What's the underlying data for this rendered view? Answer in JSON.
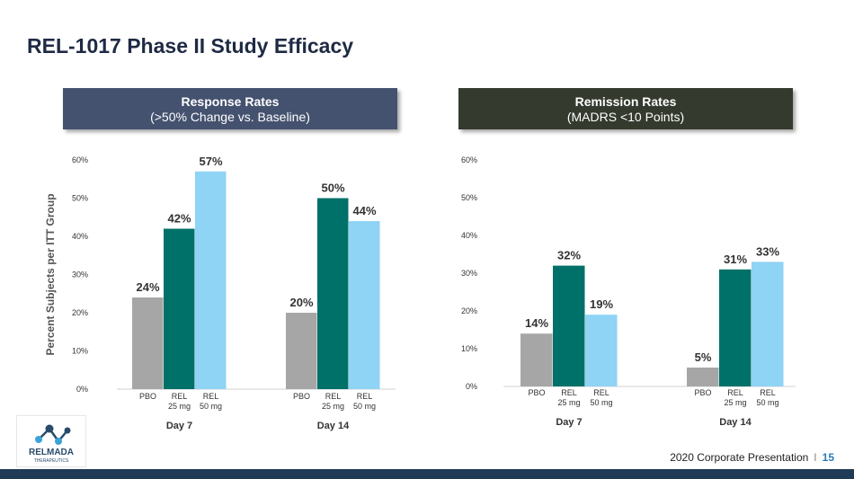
{
  "title": "REL-1017 Phase II Study Efficacy",
  "panels": {
    "left": {
      "header_line1": "Response Rates",
      "header_line2": "(>50% Change vs. Baseline)"
    },
    "right": {
      "header_line1": "Remission Rates",
      "header_line2": "(MADRS <10 Points)"
    }
  },
  "footer": {
    "text": "2020 Corporate Presentation",
    "separator": "I",
    "page": "15"
  },
  "logo": {
    "name": "RELMADA",
    "sub": "THERAPEUTICS"
  },
  "colors": {
    "pbo": "#a6a6a6",
    "rel25": "#007168",
    "rel50": "#8fd3f5",
    "header_left": "#44526f",
    "header_right": "#343a2e",
    "bar_bottom": "#1f3b56"
  },
  "chart_data": [
    {
      "type": "bar",
      "title": "Response Rates",
      "subtitle": "(>50% Change vs. Baseline)",
      "ylabel": "Percent Subjects per ITT Group",
      "ylim": [
        0,
        60
      ],
      "yticks": [
        "0%",
        "10%",
        "20%",
        "30%",
        "40%",
        "50%",
        "60%"
      ],
      "categories": [
        "Day 7",
        "Day 14"
      ],
      "series": [
        {
          "name": "PBO",
          "values": [
            24,
            20
          ]
        },
        {
          "name": "REL 25 mg",
          "values": [
            42,
            50
          ]
        },
        {
          "name": "REL 50 mg",
          "values": [
            57,
            44
          ]
        }
      ],
      "bar_labels": [
        {
          "line1": "PBO",
          "line2": ""
        },
        {
          "line1": "REL",
          "line2": "25 mg"
        },
        {
          "line1": "REL",
          "line2": "50 mg"
        }
      ],
      "value_labels": [
        [
          "24%",
          "42%",
          "57%"
        ],
        [
          "20%",
          "50%",
          "44%"
        ]
      ],
      "grid": false
    },
    {
      "type": "bar",
      "title": "Remission Rates",
      "subtitle": "(MADRS <10 Points)",
      "ylabel": "",
      "ylim": [
        0,
        60
      ],
      "yticks": [
        "0%",
        "10%",
        "20%",
        "30%",
        "40%",
        "50%",
        "60%"
      ],
      "categories": [
        "Day 7",
        "Day 14"
      ],
      "series": [
        {
          "name": "PBO",
          "values": [
            14,
            5
          ]
        },
        {
          "name": "REL 25 mg",
          "values": [
            32,
            31
          ]
        },
        {
          "name": "REL 50 mg",
          "values": [
            19,
            33
          ]
        }
      ],
      "bar_labels": [
        {
          "line1": "PBO",
          "line2": ""
        },
        {
          "line1": "REL",
          "line2": "25 mg"
        },
        {
          "line1": "REL",
          "line2": "50 mg"
        }
      ],
      "value_labels": [
        [
          "14%",
          "32%",
          "19%"
        ],
        [
          "5%",
          "31%",
          "33%"
        ]
      ],
      "grid": false
    }
  ]
}
